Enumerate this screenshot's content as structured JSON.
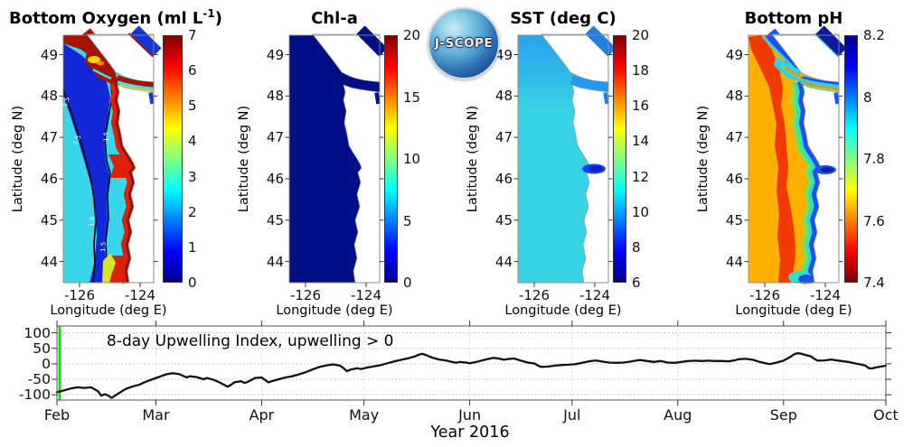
{
  "logo": {
    "text": "J-SCOPE"
  },
  "panels": [
    {
      "key": "bottom-oxygen",
      "title_main": "Bottom Oxygen (ml L",
      "title_sup": "-1",
      "title_suffix": ")",
      "xlabel": "Longitude (deg E)",
      "ylabel": "Latitude (deg N)",
      "lat_ticks": [
        "49",
        "48",
        "47",
        "46",
        "45",
        "44"
      ],
      "lon_ticks": [
        "-126",
        "-124"
      ],
      "colorbar_ticks": [
        "7",
        "6",
        "5",
        "4",
        "3",
        "2",
        "1",
        "0"
      ],
      "contour_labels": [
        "1.5",
        "1.5",
        "1.5",
        "1.5",
        "1.5"
      ]
    },
    {
      "key": "chl-a",
      "title_main": "Chl-a",
      "title_sup": "",
      "title_suffix": "",
      "xlabel": "Longitude (deg E)",
      "ylabel": "Latitude (deg N)",
      "lat_ticks": [
        "49",
        "48",
        "47",
        "46",
        "45",
        "44"
      ],
      "lon_ticks": [
        "-126",
        "-124"
      ],
      "colorbar_ticks": [
        "20",
        "15",
        "10",
        "5",
        "0"
      ]
    },
    {
      "key": "sst",
      "title_main": "SST (deg C)",
      "title_sup": "",
      "title_suffix": "",
      "xlabel": "Longitude (deg E)",
      "ylabel": "Latitude (deg N)",
      "lat_ticks": [
        "49",
        "48",
        "47",
        "46",
        "45",
        "44"
      ],
      "lon_ticks": [
        "-126",
        "-124"
      ],
      "colorbar_ticks": [
        "20",
        "18",
        "16",
        "14",
        "12",
        "10",
        "8",
        "6"
      ]
    },
    {
      "key": "bottom-ph",
      "title_main": "Bottom pH",
      "title_sup": "",
      "title_suffix": "",
      "xlabel": "Longitude (deg E)",
      "ylabel": "Latitude (deg N)",
      "lat_ticks": [
        "49",
        "48",
        "47",
        "46",
        "45",
        "44"
      ],
      "lon_ticks": [
        "-126",
        "-124"
      ],
      "colorbar_ticks": [
        "8.2",
        "8",
        "7.8",
        "7.6",
        "7.4"
      ]
    }
  ],
  "timeseries": {
    "title": "8-day Upwelling Index, upwelling > 0",
    "xlabel": "Year 2016",
    "y_ticks": [
      100,
      50,
      0,
      -50,
      -100
    ],
    "month_labels": [
      "Feb",
      "Mar",
      "Apr",
      "May",
      "Jun",
      "Jul",
      "Aug",
      "Sep",
      "Oct"
    ],
    "start_marker_color": "#00e400"
  },
  "colors": {
    "jet_low": "#00008f",
    "jet_blue": "#0000ff",
    "jet_cyan": "#00ffff",
    "jet_yellow": "#ffff00",
    "jet_red": "#ff0000",
    "jet_high": "#800000",
    "upwelling_line": "#111111",
    "start_marker": "#00e400",
    "oxygen_hypoxic_tongue": "#1227d8",
    "oxygen_offshore": "#38d6e8",
    "oxygen_coastal": "#dc2109",
    "chl_field": "#000f88",
    "sst_field": "#38d2e5",
    "sst_north": "#2aa3ec",
    "sst_columbia_plume": "#0a23c2",
    "ph_offshore": "#ffb000",
    "ph_midshelf_low": "#f03a00",
    "ph_inner_shelf": "#2fdfc8",
    "ph_nearshore": "#1e4ff0"
  },
  "chart_data": [
    {
      "type": "heatmap",
      "title": "Bottom Oxygen (ml L^-1)",
      "xlabel": "Longitude (deg E)",
      "ylabel": "Latitude (deg N)",
      "xlim": [
        -126.5,
        -123.5
      ],
      "ylim": [
        43.5,
        49.5
      ],
      "x_ticks": [
        -126,
        -124
      ],
      "y_ticks": [
        49,
        48,
        47,
        46,
        45,
        44
      ],
      "colormap": "jet",
      "colorbar_range": [
        0,
        7
      ],
      "colorbar_ticks": [
        0,
        1,
        2,
        3,
        4,
        5,
        6,
        7
      ],
      "contour_levels_labeled": [
        1.5
      ],
      "pattern": "Hypoxic dark-blue tongue (~0.5-1.5 ml/L) over mid/outer shelf bounded by black 1.5 contour lines; cyan ~2-2.5 far offshore; high oxygen red band ~6-7 along the coast, in the Strait of Juan de Fuca and Strait of Georgia; yellow-cyan patches at strait entrance."
    },
    {
      "type": "heatmap",
      "title": "Chl-a",
      "xlabel": "Longitude (deg E)",
      "ylabel": "Latitude (deg N)",
      "xlim": [
        -126.5,
        -123.5
      ],
      "ylim": [
        43.5,
        49.5
      ],
      "x_ticks": [
        -126,
        -124
      ],
      "y_ticks": [
        49,
        48,
        47,
        46,
        45,
        44
      ],
      "colormap": "jet",
      "colorbar_range": [
        0,
        20
      ],
      "colorbar_ticks": [
        0,
        5,
        10,
        15,
        20
      ],
      "pattern": "Uniform near-zero chlorophyll (dark navy, <1) over the entire ocean domain."
    },
    {
      "type": "heatmap",
      "title": "SST (deg C)",
      "xlabel": "Longitude (deg E)",
      "ylabel": "Latitude (deg N)",
      "xlim": [
        -126.5,
        -123.5
      ],
      "ylim": [
        43.5,
        49.5
      ],
      "x_ticks": [
        -126,
        -124
      ],
      "y_ticks": [
        49,
        48,
        47,
        46,
        45,
        44
      ],
      "colormap": "jet",
      "colorbar_range": [
        6,
        20
      ],
      "colorbar_ticks": [
        6,
        8,
        10,
        12,
        14,
        16,
        18,
        20
      ],
      "pattern": "Cyan ~9-11 C over most of the domain; slightly cooler medium blue north of ~48.3N and in the straits; cold ~7 C dark-blue plume at the Columbia River mouth near 46.2N."
    },
    {
      "type": "heatmap",
      "title": "Bottom pH",
      "xlabel": "Longitude (deg E)",
      "ylabel": "Latitude (deg N)",
      "xlim": [
        -126.5,
        -123.5
      ],
      "ylim": [
        43.5,
        49.5
      ],
      "x_ticks": [
        -126,
        -124
      ],
      "y_ticks": [
        49,
        48,
        47,
        46,
        45,
        44
      ],
      "colormap": "jet_reversed",
      "colorbar_range": [
        7.4,
        8.2
      ],
      "colorbar_ticks": [
        7.4,
        7.6,
        7.8,
        8.0,
        8.2
      ],
      "pattern": "Orange ~7.6-7.65 offshore, red band ~7.5-7.55 mid-shelf, green-cyan ~7.7-7.8 inner shelf, blue ~8.0-8.1 nearshore, in the straits and north of 48.5N."
    },
    {
      "type": "line",
      "name": "8-day Upwelling Index",
      "title": "8-day Upwelling Index, upwelling > 0",
      "xlabel": "Year 2016",
      "x_unit": "days since 1 Feb 2016",
      "month_starts": {
        "Feb": 0,
        "Mar": 29,
        "Apr": 60,
        "May": 90,
        "Jun": 121,
        "Jul": 151,
        "Aug": 182,
        "Sep": 213,
        "Oct": 243
      },
      "ylim": [
        -117,
        122
      ],
      "y_ticks": [
        100,
        50,
        0,
        -50,
        -100
      ],
      "grid": true,
      "line_color": "#111111",
      "start_line": {
        "x_day": 0,
        "color": "#00e400"
      },
      "points": [
        [
          0,
          -92
        ],
        [
          2,
          -86
        ],
        [
          4,
          -80
        ],
        [
          6,
          -76
        ],
        [
          8,
          -78
        ],
        [
          10,
          -76
        ],
        [
          12,
          -88
        ],
        [
          13,
          -103
        ],
        [
          14,
          -98
        ],
        [
          15,
          -102
        ],
        [
          16,
          -110
        ],
        [
          18,
          -96
        ],
        [
          20,
          -82
        ],
        [
          22,
          -74
        ],
        [
          24,
          -68
        ],
        [
          26,
          -58
        ],
        [
          28,
          -50
        ],
        [
          30,
          -42
        ],
        [
          32,
          -34
        ],
        [
          34,
          -30
        ],
        [
          36,
          -34
        ],
        [
          38,
          -44
        ],
        [
          39,
          -40
        ],
        [
          41,
          -43
        ],
        [
          43,
          -50
        ],
        [
          44,
          -46
        ],
        [
          46,
          -52
        ],
        [
          48,
          -62
        ],
        [
          50,
          -74
        ],
        [
          51,
          -68
        ],
        [
          52,
          -60
        ],
        [
          54,
          -56
        ],
        [
          55,
          -62
        ],
        [
          56,
          -58
        ],
        [
          58,
          -46
        ],
        [
          60,
          -44
        ],
        [
          61,
          -52
        ],
        [
          62,
          -60
        ],
        [
          63,
          -56
        ],
        [
          65,
          -50
        ],
        [
          67,
          -44
        ],
        [
          69,
          -40
        ],
        [
          71,
          -34
        ],
        [
          73,
          -27
        ],
        [
          75,
          -18
        ],
        [
          77,
          -10
        ],
        [
          79,
          -5
        ],
        [
          81,
          -2
        ],
        [
          83,
          -6
        ],
        [
          84,
          -14
        ],
        [
          85,
          -24
        ],
        [
          86,
          -19
        ],
        [
          88,
          -14
        ],
        [
          89,
          -17
        ],
        [
          91,
          -12
        ],
        [
          93,
          -8
        ],
        [
          95,
          -4
        ],
        [
          97,
          2
        ],
        [
          99,
          8
        ],
        [
          101,
          13
        ],
        [
          103,
          18
        ],
        [
          105,
          24
        ],
        [
          106,
          29
        ],
        [
          107,
          32
        ],
        [
          108,
          29
        ],
        [
          110,
          20
        ],
        [
          112,
          14
        ],
        [
          114,
          11
        ],
        [
          115,
          8
        ],
        [
          117,
          3
        ],
        [
          118,
          6
        ],
        [
          120,
          4
        ],
        [
          121,
          2
        ],
        [
          123,
          6
        ],
        [
          125,
          12
        ],
        [
          127,
          17
        ],
        [
          128,
          19
        ],
        [
          130,
          16
        ],
        [
          131,
          13
        ],
        [
          132,
          15
        ],
        [
          134,
          17
        ],
        [
          136,
          10
        ],
        [
          138,
          4
        ],
        [
          140,
          1
        ],
        [
          141,
          -6
        ],
        [
          142,
          -10
        ],
        [
          144,
          -9
        ],
        [
          146,
          -6
        ],
        [
          148,
          -4
        ],
        [
          150,
          -3
        ],
        [
          152,
          -1
        ],
        [
          154,
          3
        ],
        [
          156,
          8
        ],
        [
          158,
          11
        ],
        [
          160,
          7
        ],
        [
          162,
          4
        ],
        [
          164,
          3
        ],
        [
          166,
          4
        ],
        [
          168,
          7
        ],
        [
          170,
          11
        ],
        [
          171,
          12
        ],
        [
          173,
          9
        ],
        [
          175,
          6
        ],
        [
          177,
          9
        ],
        [
          179,
          4
        ],
        [
          181,
          3
        ],
        [
          183,
          6
        ],
        [
          185,
          9
        ],
        [
          187,
          10
        ],
        [
          189,
          9
        ],
        [
          191,
          10
        ],
        [
          193,
          9
        ],
        [
          195,
          9
        ],
        [
          197,
          8
        ],
        [
          199,
          12
        ],
        [
          200,
          15
        ],
        [
          202,
          16
        ],
        [
          204,
          13
        ],
        [
          206,
          6
        ],
        [
          208,
          1
        ],
        [
          209,
          -1
        ],
        [
          211,
          4
        ],
        [
          213,
          10
        ],
        [
          215,
          22
        ],
        [
          216,
          30
        ],
        [
          217,
          34
        ],
        [
          218,
          33
        ],
        [
          219,
          30
        ],
        [
          221,
          24
        ],
        [
          222,
          16
        ],
        [
          223,
          10
        ],
        [
          225,
          11
        ],
        [
          227,
          14
        ],
        [
          228,
          12
        ],
        [
          230,
          9
        ],
        [
          232,
          6
        ],
        [
          234,
          1
        ],
        [
          236,
          -3
        ],
        [
          237,
          -6
        ],
        [
          238,
          -14
        ],
        [
          239,
          -15
        ],
        [
          240,
          -12
        ],
        [
          241,
          -10
        ],
        [
          242,
          -8
        ],
        [
          243,
          -6
        ]
      ]
    }
  ]
}
